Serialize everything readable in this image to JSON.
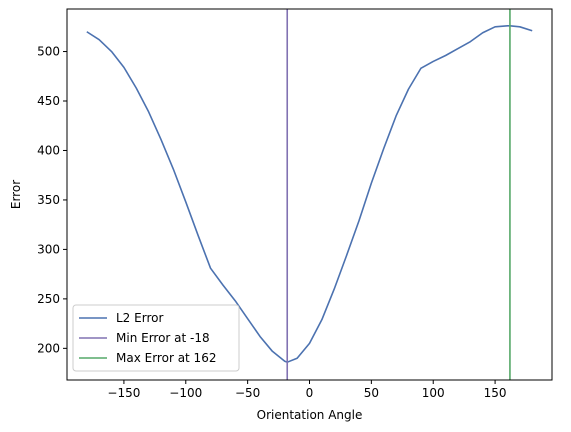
{
  "chart_data": {
    "type": "line",
    "title": "",
    "xlabel": "Orientation Angle",
    "ylabel": "Error",
    "xlim": [
      -196,
      196
    ],
    "ylim": [
      168,
      543
    ],
    "xticks": [
      -150,
      -100,
      -50,
      0,
      50,
      100,
      150
    ],
    "xtick_labels": [
      "−150",
      "−100",
      "−50",
      "0",
      "50",
      "100",
      "150"
    ],
    "yticks": [
      200,
      250,
      300,
      350,
      400,
      450,
      500
    ],
    "ytick_labels": [
      "200",
      "250",
      "300",
      "350",
      "400",
      "450",
      "500"
    ],
    "grid": false,
    "legend_position": "lower-left",
    "series": [
      {
        "name": "L2 Error",
        "color": "#4c72b0",
        "x": [
          -180,
          -170,
          -160,
          -150,
          -140,
          -130,
          -120,
          -110,
          -100,
          -90,
          -80,
          -70,
          -60,
          -50,
          -40,
          -30,
          -20,
          -18,
          -10,
          0,
          10,
          20,
          30,
          40,
          50,
          60,
          70,
          80,
          90,
          100,
          110,
          120,
          130,
          140,
          150,
          160,
          162,
          170,
          180
        ],
        "y": [
          520,
          512,
          500,
          484,
          463,
          439,
          411,
          381,
          348,
          314,
          281,
          264,
          248,
          230,
          212,
          197,
          187,
          186,
          190,
          205,
          229,
          260,
          294,
          329,
          367,
          402,
          435,
          462,
          483,
          490,
          496,
          503,
          510,
          519,
          525,
          526,
          526,
          525,
          521
        ]
      }
    ],
    "vlines": [
      {
        "name": "Min Error at -18",
        "x": -18,
        "color": "#8172b2"
      },
      {
        "name": "Max Error at 162",
        "x": 162,
        "color": "#55a868"
      }
    ]
  }
}
